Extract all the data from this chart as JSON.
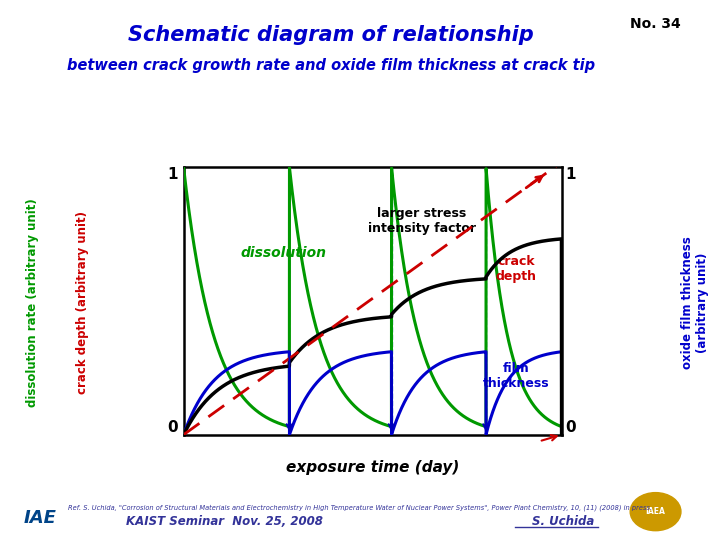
{
  "title": "Schematic diagram of relationship",
  "subtitle": "between crack growth rate and oxide film thickness at crack tip",
  "no_label": "No. 34",
  "xlabel": "exposure time (day)",
  "ylabel_left1": "dissolution rate (arbitrary unit)",
  "ylabel_left2": "crack depth (arbitrary unit)",
  "ylabel_right": "oxide film thickness\n(arbitrary unit)",
  "title_color": "#0000CC",
  "subtitle_color": "#0000CC",
  "no_color": "#000000",
  "bg_color": "#FFFFFF",
  "plot_bg": "#FFFFFF",
  "green_color": "#009900",
  "red_color": "#CC0000",
  "black_color": "#000000",
  "blue_color": "#0000CC",
  "dashed_red_color": "#CC0000",
  "footer_ref": "Ref. S. Uchida, \"Corrosion of Structural Materials and Electrochemistry in High Temperature Water of Nuclear Power Systems\", Power Plant Chemistry, 10, (11) (2008) in press.",
  "footer_left": "KAIST Seminar  Nov. 25, 2008",
  "footer_right": "S. Uchida",
  "label_dissolution": "dissolution",
  "label_crack_depth": "crack\ndepth",
  "label_film_thickness": "film\nthickness",
  "label_larger_stress": "larger stress\nintensity factor"
}
